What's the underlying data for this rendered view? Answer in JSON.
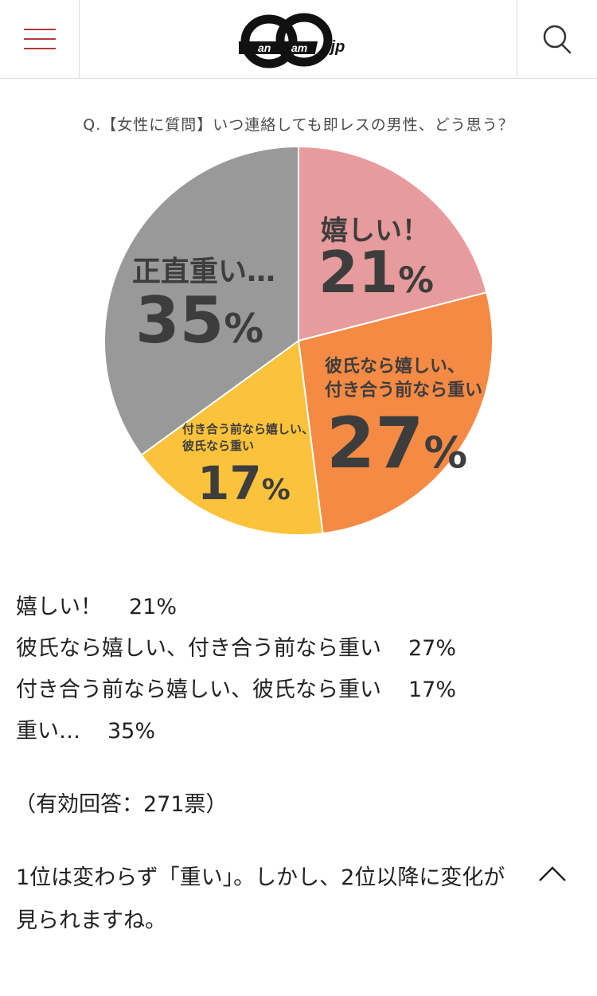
{
  "header": {
    "logo_text": "CanCam",
    "logo_suffix": ".jp",
    "menu_icon": "hamburger-icon",
    "search_icon": "search-icon"
  },
  "chart_data": {
    "type": "pie",
    "title": "Q.【女性に質問】いつ連絡しても即レスの男性、どう思う？",
    "categories": [
      "嬉しい！",
      "彼氏なら嬉しい、付き合う前なら重い",
      "付き合う前なら嬉しい、彼氏なら重い",
      "正直重い…"
    ],
    "values": [
      21,
      27,
      17,
      35
    ],
    "colors": [
      "#e89b9c",
      "#f58a45",
      "#fbc23b",
      "#999999"
    ],
    "slice_labels": {
      "s1_line1": "嬉しい！",
      "s1_pct": "21",
      "s2_line1": "彼氏なら嬉しい、",
      "s2_line2": "付き合う前なら重い",
      "s2_pct": "27",
      "s3_line1": "付き合う前なら嬉しい、",
      "s3_line2": "彼氏なら重い",
      "s3_pct": "17",
      "s4_line1": "正直重い…",
      "s4_pct": "35",
      "pct_sign": "%"
    }
  },
  "results": [
    {
      "label": "嬉しい！",
      "value": "21%"
    },
    {
      "label": "彼氏なら嬉しい、付き合う前なら重い",
      "value": "27%"
    },
    {
      "label": "付き合う前なら嬉しい、彼氏なら重い",
      "value": "17%"
    },
    {
      "label": "重い…",
      "value": "35%"
    }
  ],
  "votes": "（有効回答：271票）",
  "summary_line1": "1位は変わらず「重い」。しかし、2位以降に変化が",
  "summary_line2": "見られますね。",
  "scroll_top_icon": "chevron-up-icon"
}
